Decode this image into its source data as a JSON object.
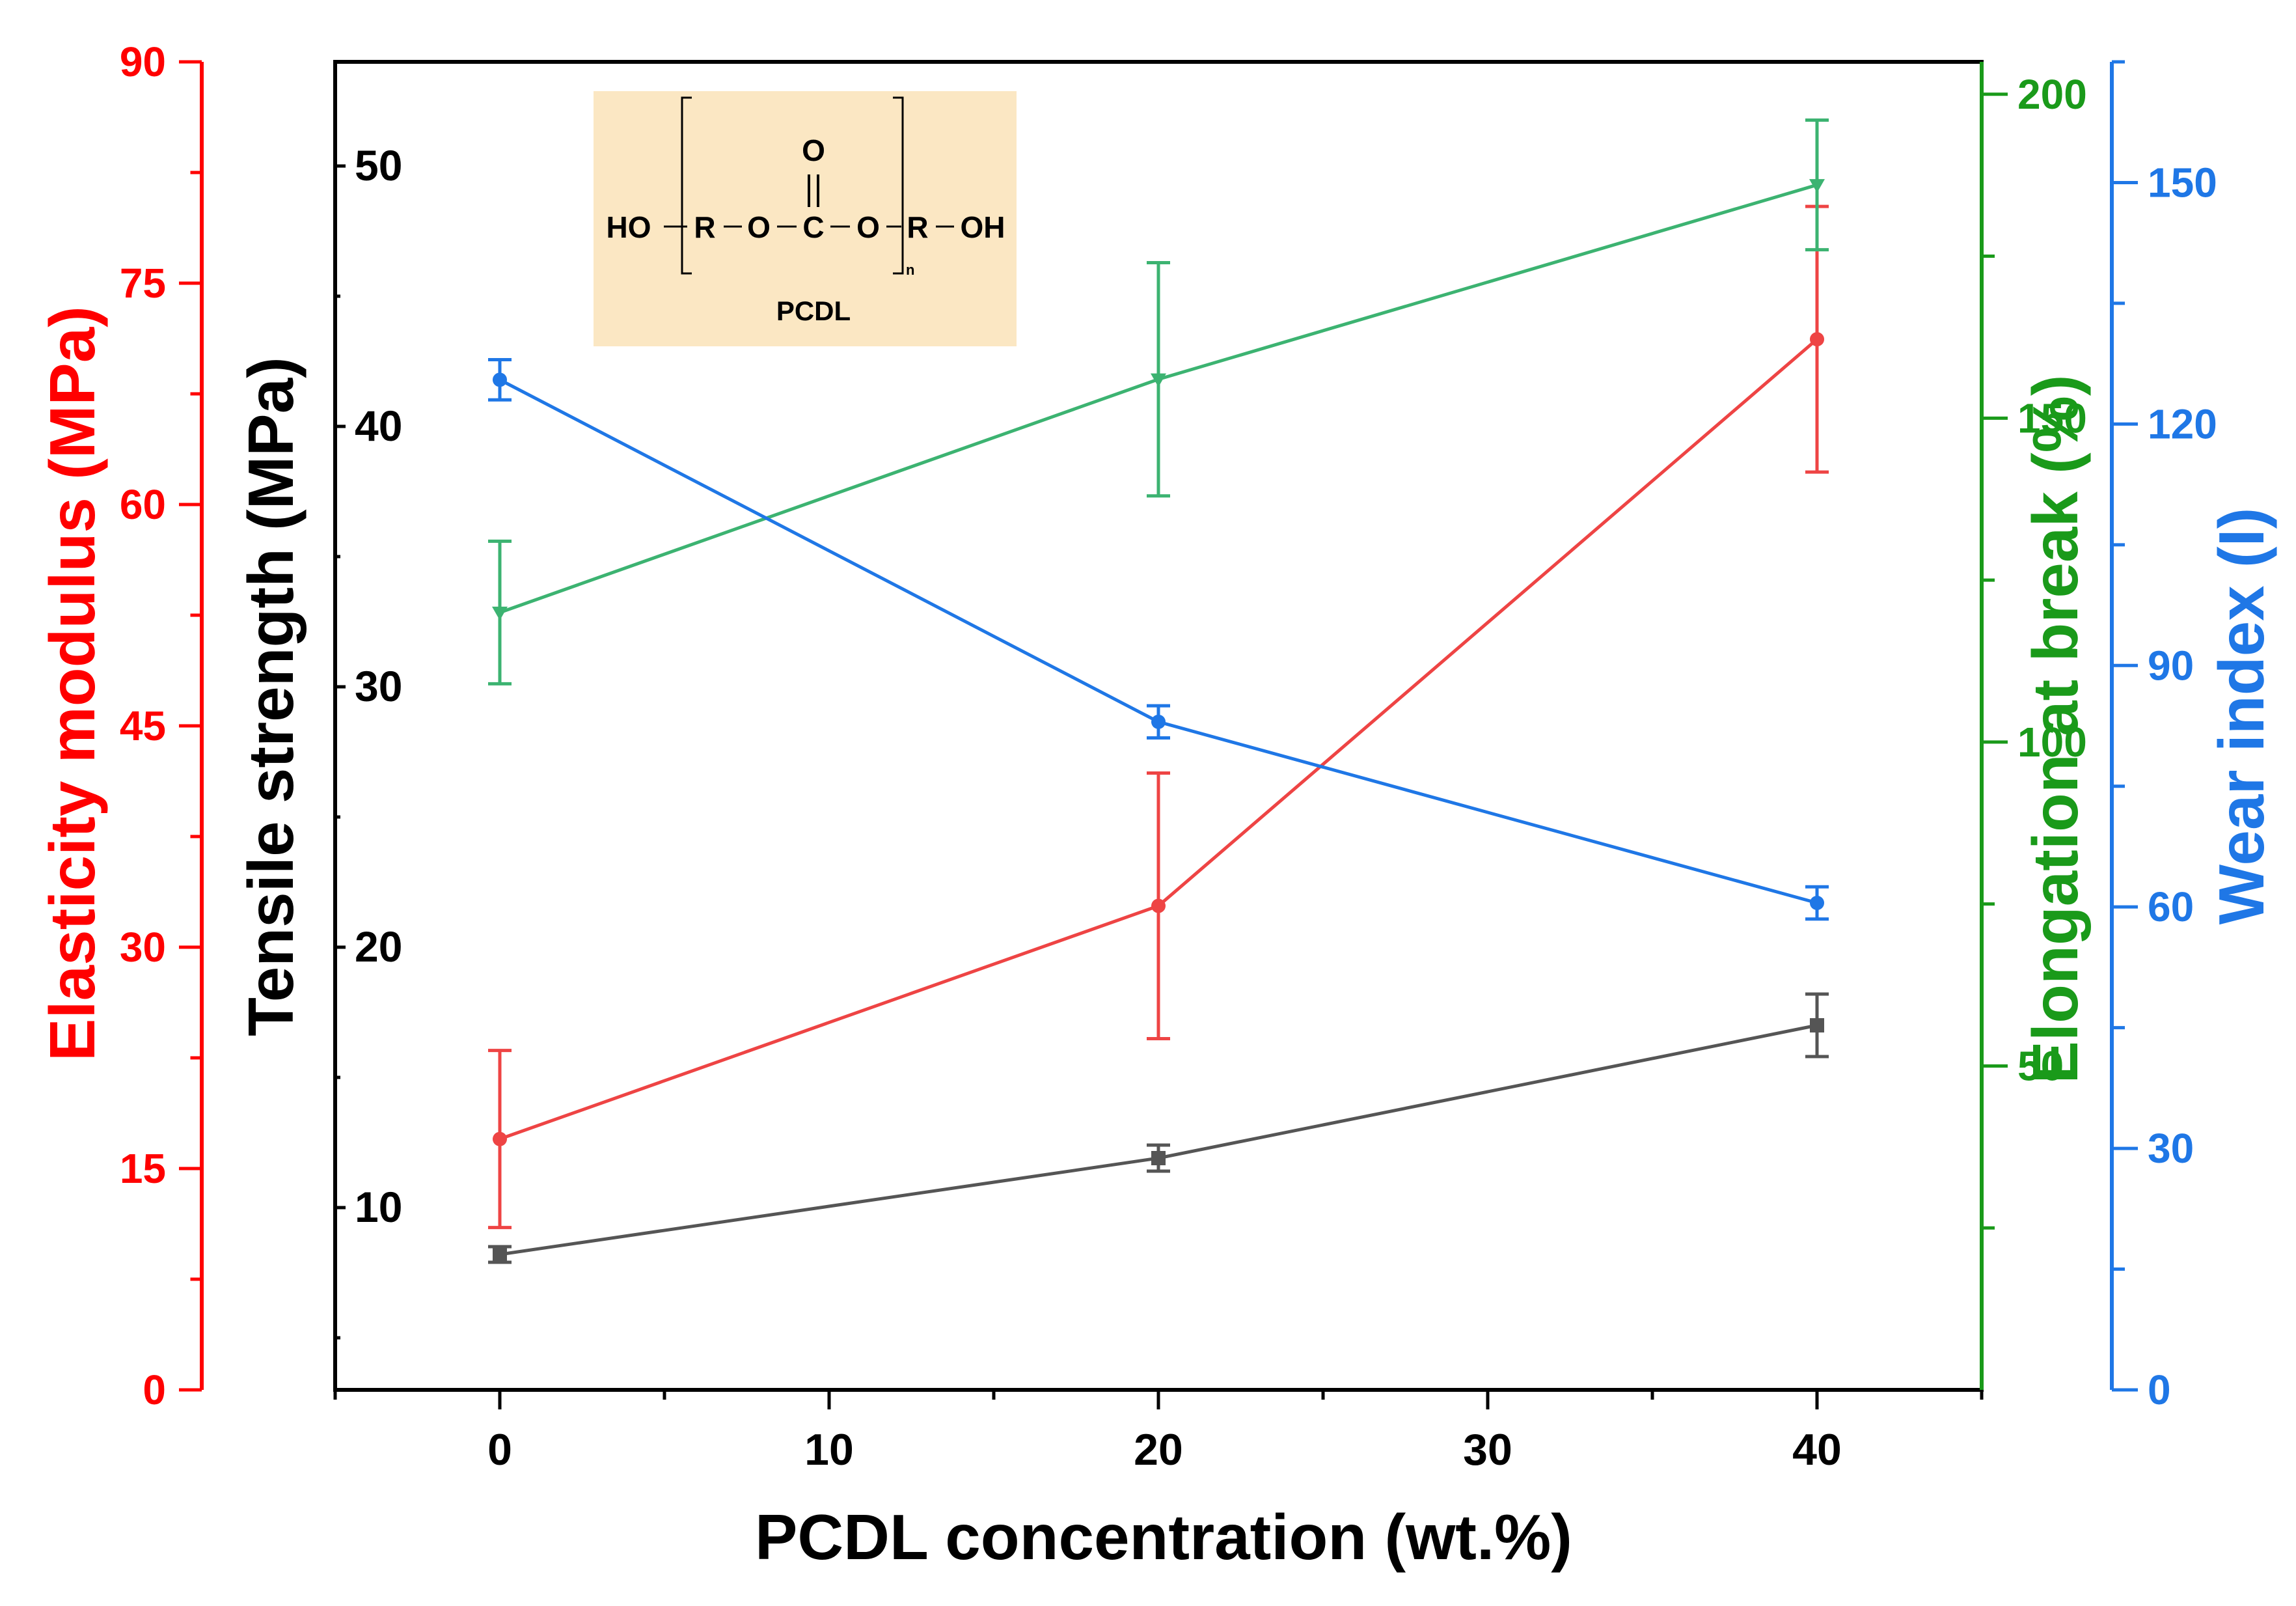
{
  "chart_data": {
    "type": "line",
    "xlabel": "PCDL concentration (wt.%)",
    "xlim": [
      -5,
      45
    ],
    "x_ticks": [
      0,
      10,
      20,
      30,
      40
    ],
    "x_minor_ticks": [
      -5,
      5,
      15,
      25,
      35,
      45
    ],
    "x": [
      0,
      20,
      40
    ],
    "axes": [
      {
        "id": "elasticity",
        "label": "Elasticity modulus (MPa)",
        "color": "#ff0000",
        "lim": [
          0,
          90
        ],
        "ticks": [
          0,
          15,
          30,
          45,
          60,
          75,
          90
        ],
        "minor_ticks": [
          7.5,
          22.5,
          37.5,
          52.5,
          67.5,
          82.5
        ]
      },
      {
        "id": "tensile",
        "label": "Tensile strength (MPa)",
        "color": "#000000",
        "lim": [
          3,
          54
        ],
        "ticks": [
          10,
          20,
          30,
          40,
          50
        ],
        "minor_ticks": [
          5,
          15,
          25,
          35,
          45
        ]
      },
      {
        "id": "elongation",
        "label": "Elongation at break (%)",
        "color": "#1a9a1a",
        "lim": [
          0,
          205
        ],
        "ticks": [
          50,
          100,
          150,
          200
        ],
        "minor_ticks": [
          25,
          75,
          125,
          175
        ]
      },
      {
        "id": "wear",
        "label": "Wear index (I)",
        "color": "#1f77e6",
        "lim": [
          0,
          165
        ],
        "ticks": [
          0,
          30,
          60,
          90,
          120,
          150
        ],
        "minor_ticks": [
          15,
          45,
          75,
          105,
          135,
          165
        ]
      }
    ],
    "series": [
      {
        "name": "Elasticity modulus",
        "axis": "elasticity",
        "color": "#ee4444",
        "marker": "circle",
        "values": [
          17,
          32.8,
          71.2
        ],
        "errors": [
          6,
          9,
          9
        ]
      },
      {
        "name": "Tensile strength",
        "axis": "tensile",
        "color": "#555555",
        "marker": "square",
        "values": [
          8.2,
          11.9,
          17
        ],
        "errors": [
          0.3,
          0.5,
          1.2
        ]
      },
      {
        "name": "Elongation at break",
        "axis": "elongation",
        "color": "#3cb371",
        "marker": "triangle-down",
        "values": [
          120,
          156,
          186
        ],
        "errors": [
          11,
          18,
          10
        ]
      },
      {
        "name": "Wear index",
        "axis": "wear",
        "color": "#1f77e6",
        "marker": "circle",
        "values": [
          125.5,
          83,
          60.5
        ],
        "errors": [
          2.5,
          2,
          2
        ]
      }
    ],
    "inset": {
      "label": "PCDL",
      "formula_parts": [
        "HO",
        "R",
        "O",
        "C",
        "O",
        "R",
        "OH"
      ],
      "carbonyl_o": "O",
      "repeat_subscript": "n",
      "background": "#fbe7c3"
    }
  }
}
